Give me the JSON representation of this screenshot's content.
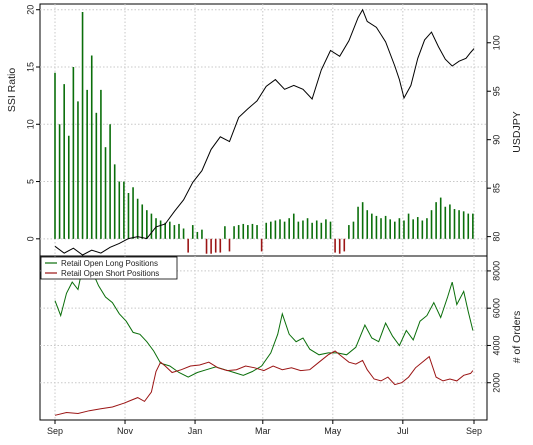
{
  "chart_data": [
    {
      "panel": "top",
      "type": "bar+line",
      "ylabel_left": "SSI Ratio",
      "ylabel_right": "USDJPY",
      "left_ticks": [
        0,
        5,
        10,
        15,
        20
      ],
      "right_ticks": [
        80,
        85,
        90,
        95,
        100
      ],
      "ylim_left": [
        -1.5,
        20.5
      ],
      "ylim_right": [
        78,
        104
      ],
      "x_range": [
        0,
        365
      ],
      "grid": true,
      "colors": {
        "long": "#0a6e0a",
        "short": "#9b1515",
        "price": "#000000"
      },
      "ssi_series": [
        {
          "x": 0,
          "v": 14.5
        },
        {
          "x": 4,
          "v": 10
        },
        {
          "x": 8,
          "v": 13.5
        },
        {
          "x": 12,
          "v": 9
        },
        {
          "x": 16,
          "v": 15
        },
        {
          "x": 20,
          "v": 12
        },
        {
          "x": 24,
          "v": 19.8
        },
        {
          "x": 28,
          "v": 13
        },
        {
          "x": 32,
          "v": 16
        },
        {
          "x": 36,
          "v": 11
        },
        {
          "x": 40,
          "v": 13
        },
        {
          "x": 44,
          "v": 8
        },
        {
          "x": 48,
          "v": 10
        },
        {
          "x": 52,
          "v": 6.5
        },
        {
          "x": 56,
          "v": 5
        },
        {
          "x": 60,
          "v": 5
        },
        {
          "x": 64,
          "v": 4
        },
        {
          "x": 68,
          "v": 4.5
        },
        {
          "x": 72,
          "v": 3.5
        },
        {
          "x": 76,
          "v": 3
        },
        {
          "x": 80,
          "v": 2.5
        },
        {
          "x": 84,
          "v": 2.2
        },
        {
          "x": 88,
          "v": 1.8
        },
        {
          "x": 92,
          "v": 1.6
        },
        {
          "x": 96,
          "v": 1.4
        },
        {
          "x": 100,
          "v": 1.5
        },
        {
          "x": 104,
          "v": 1.2
        },
        {
          "x": 108,
          "v": 1.3
        },
        {
          "x": 112,
          "v": 0.9
        },
        {
          "x": 116,
          "v": -1.2
        },
        {
          "x": 120,
          "v": 1.2
        },
        {
          "x": 124,
          "v": 0.6
        },
        {
          "x": 128,
          "v": 0.8
        },
        {
          "x": 132,
          "v": -1.3
        },
        {
          "x": 136,
          "v": -1.3
        },
        {
          "x": 140,
          "v": -1.2
        },
        {
          "x": 144,
          "v": -1.2
        },
        {
          "x": 148,
          "v": 1.1
        },
        {
          "x": 152,
          "v": -1.1
        },
        {
          "x": 156,
          "v": 1.1
        },
        {
          "x": 160,
          "v": 1.2
        },
        {
          "x": 164,
          "v": 1.3
        },
        {
          "x": 168,
          "v": 1.2
        },
        {
          "x": 172,
          "v": 1.3
        },
        {
          "x": 176,
          "v": 1.2
        },
        {
          "x": 180,
          "v": -1.1
        },
        {
          "x": 184,
          "v": 1.4
        },
        {
          "x": 188,
          "v": 1.5
        },
        {
          "x": 192,
          "v": 1.6
        },
        {
          "x": 196,
          "v": 1.7
        },
        {
          "x": 200,
          "v": 1.5
        },
        {
          "x": 204,
          "v": 1.8
        },
        {
          "x": 208,
          "v": 2.2
        },
        {
          "x": 212,
          "v": 1.5
        },
        {
          "x": 216,
          "v": 1.6
        },
        {
          "x": 220,
          "v": 1.8
        },
        {
          "x": 224,
          "v": 1.4
        },
        {
          "x": 228,
          "v": 1.6
        },
        {
          "x": 232,
          "v": 1.4
        },
        {
          "x": 236,
          "v": 1.7
        },
        {
          "x": 240,
          "v": 1.5
        },
        {
          "x": 244,
          "v": -1.2
        },
        {
          "x": 248,
          "v": -1.3
        },
        {
          "x": 252,
          "v": -1.1
        },
        {
          "x": 256,
          "v": 1.2
        },
        {
          "x": 260,
          "v": 1.5
        },
        {
          "x": 264,
          "v": 2.8
        },
        {
          "x": 268,
          "v": 3.2
        },
        {
          "x": 272,
          "v": 2.5
        },
        {
          "x": 276,
          "v": 2.2
        },
        {
          "x": 280,
          "v": 2
        },
        {
          "x": 284,
          "v": 1.8
        },
        {
          "x": 288,
          "v": 2
        },
        {
          "x": 292,
          "v": 1.7
        },
        {
          "x": 296,
          "v": 1.5
        },
        {
          "x": 300,
          "v": 1.8
        },
        {
          "x": 304,
          "v": 1.6
        },
        {
          "x": 308,
          "v": 2.2
        },
        {
          "x": 312,
          "v": 1.7
        },
        {
          "x": 316,
          "v": 1.9
        },
        {
          "x": 320,
          "v": 1.6
        },
        {
          "x": 324,
          "v": 1.8
        },
        {
          "x": 328,
          "v": 2.5
        },
        {
          "x": 332,
          "v": 3.2
        },
        {
          "x": 336,
          "v": 3.6
        },
        {
          "x": 340,
          "v": 2.8
        },
        {
          "x": 344,
          "v": 3
        },
        {
          "x": 348,
          "v": 2.6
        },
        {
          "x": 352,
          "v": 2.5
        },
        {
          "x": 356,
          "v": 2.4
        },
        {
          "x": 360,
          "v": 2.2
        },
        {
          "x": 364,
          "v": 2.2
        }
      ],
      "price_series": [
        {
          "x": 0,
          "v": 79.0
        },
        {
          "x": 8,
          "v": 78.3
        },
        {
          "x": 16,
          "v": 78.8
        },
        {
          "x": 24,
          "v": 78.1
        },
        {
          "x": 32,
          "v": 78.6
        },
        {
          "x": 40,
          "v": 78.3
        },
        {
          "x": 48,
          "v": 78.9
        },
        {
          "x": 56,
          "v": 79.3
        },
        {
          "x": 64,
          "v": 79.8
        },
        {
          "x": 72,
          "v": 80.0
        },
        {
          "x": 80,
          "v": 79.8
        },
        {
          "x": 88,
          "v": 81.0
        },
        {
          "x": 96,
          "v": 81.3
        },
        {
          "x": 104,
          "v": 82.6
        },
        {
          "x": 112,
          "v": 83.8
        },
        {
          "x": 120,
          "v": 85.6
        },
        {
          "x": 128,
          "v": 86.8
        },
        {
          "x": 136,
          "v": 89.0
        },
        {
          "x": 144,
          "v": 90.3
        },
        {
          "x": 152,
          "v": 89.8
        },
        {
          "x": 160,
          "v": 92.3
        },
        {
          "x": 168,
          "v": 93.2
        },
        {
          "x": 176,
          "v": 94.0
        },
        {
          "x": 184,
          "v": 95.5
        },
        {
          "x": 192,
          "v": 96.2
        },
        {
          "x": 200,
          "v": 95.2
        },
        {
          "x": 208,
          "v": 95.6
        },
        {
          "x": 216,
          "v": 95.2
        },
        {
          "x": 224,
          "v": 94.2
        },
        {
          "x": 232,
          "v": 97.2
        },
        {
          "x": 240,
          "v": 99.2
        },
        {
          "x": 248,
          "v": 98.6
        },
        {
          "x": 256,
          "v": 100.2
        },
        {
          "x": 264,
          "v": 102.6
        },
        {
          "x": 268,
          "v": 103.4
        },
        {
          "x": 272,
          "v": 102.2
        },
        {
          "x": 280,
          "v": 101.6
        },
        {
          "x": 288,
          "v": 100.1
        },
        {
          "x": 296,
          "v": 97.6
        },
        {
          "x": 300,
          "v": 96.2
        },
        {
          "x": 304,
          "v": 94.3
        },
        {
          "x": 310,
          "v": 95.6
        },
        {
          "x": 316,
          "v": 98.4
        },
        {
          "x": 322,
          "v": 100.3
        },
        {
          "x": 328,
          "v": 101.1
        },
        {
          "x": 334,
          "v": 99.6
        },
        {
          "x": 340,
          "v": 98.3
        },
        {
          "x": 346,
          "v": 97.6
        },
        {
          "x": 352,
          "v": 98.1
        },
        {
          "x": 358,
          "v": 98.4
        },
        {
          "x": 362,
          "v": 99.0
        },
        {
          "x": 365,
          "v": 99.4
        }
      ]
    },
    {
      "panel": "bottom",
      "type": "line",
      "ylabel_right": "# of Orders",
      "right_ticks": [
        2000,
        4000,
        6000,
        8000
      ],
      "ylim_right": [
        0,
        8800
      ],
      "x_range": [
        0,
        365
      ],
      "x_ticks": [
        {
          "label": "Sep",
          "x": 0
        },
        {
          "label": "Nov",
          "x": 61
        },
        {
          "label": "Jan",
          "x": 122
        },
        {
          "label": "Mar",
          "x": 181
        },
        {
          "label": "May",
          "x": 242
        },
        {
          "label": "Jul",
          "x": 303
        },
        {
          "label": "Sep",
          "x": 365
        }
      ],
      "grid": true,
      "legend_position": "top-left",
      "series": [
        {
          "name": "Retail Open Long Positions",
          "color": "#0a6e0a",
          "points": [
            {
              "x": 0,
              "v": 6400
            },
            {
              "x": 5,
              "v": 5600
            },
            {
              "x": 10,
              "v": 6800
            },
            {
              "x": 15,
              "v": 7400
            },
            {
              "x": 20,
              "v": 7000
            },
            {
              "x": 24,
              "v": 8200
            },
            {
              "x": 28,
              "v": 7700
            },
            {
              "x": 33,
              "v": 7900
            },
            {
              "x": 38,
              "v": 7200
            },
            {
              "x": 44,
              "v": 6600
            },
            {
              "x": 50,
              "v": 6300
            },
            {
              "x": 56,
              "v": 5700
            },
            {
              "x": 62,
              "v": 5300
            },
            {
              "x": 68,
              "v": 4700
            },
            {
              "x": 74,
              "v": 4600
            },
            {
              "x": 80,
              "v": 4200
            },
            {
              "x": 86,
              "v": 3700
            },
            {
              "x": 92,
              "v": 3050
            },
            {
              "x": 100,
              "v": 2900
            },
            {
              "x": 108,
              "v": 2550
            },
            {
              "x": 116,
              "v": 2300
            },
            {
              "x": 124,
              "v": 2550
            },
            {
              "x": 132,
              "v": 2700
            },
            {
              "x": 140,
              "v": 2850
            },
            {
              "x": 148,
              "v": 2700
            },
            {
              "x": 156,
              "v": 2550
            },
            {
              "x": 164,
              "v": 2400
            },
            {
              "x": 172,
              "v": 2600
            },
            {
              "x": 180,
              "v": 2900
            },
            {
              "x": 188,
              "v": 3600
            },
            {
              "x": 194,
              "v": 4600
            },
            {
              "x": 198,
              "v": 5700
            },
            {
              "x": 204,
              "v": 4600
            },
            {
              "x": 210,
              "v": 4200
            },
            {
              "x": 216,
              "v": 4400
            },
            {
              "x": 222,
              "v": 3800
            },
            {
              "x": 230,
              "v": 3500
            },
            {
              "x": 238,
              "v": 3600
            },
            {
              "x": 246,
              "v": 3600
            },
            {
              "x": 254,
              "v": 3500
            },
            {
              "x": 262,
              "v": 3900
            },
            {
              "x": 270,
              "v": 5100
            },
            {
              "x": 276,
              "v": 4400
            },
            {
              "x": 282,
              "v": 4200
            },
            {
              "x": 288,
              "v": 5200
            },
            {
              "x": 294,
              "v": 4500
            },
            {
              "x": 300,
              "v": 4000
            },
            {
              "x": 306,
              "v": 4800
            },
            {
              "x": 312,
              "v": 4300
            },
            {
              "x": 318,
              "v": 5300
            },
            {
              "x": 324,
              "v": 5600
            },
            {
              "x": 330,
              "v": 6300
            },
            {
              "x": 336,
              "v": 5500
            },
            {
              "x": 342,
              "v": 6600
            },
            {
              "x": 346,
              "v": 7400
            },
            {
              "x": 350,
              "v": 6200
            },
            {
              "x": 356,
              "v": 6900
            },
            {
              "x": 360,
              "v": 5800
            },
            {
              "x": 364,
              "v": 4800
            }
          ]
        },
        {
          "name": "Retail Open Short Positions",
          "color": "#9b1515",
          "points": [
            {
              "x": 0,
              "v": 250
            },
            {
              "x": 10,
              "v": 400
            },
            {
              "x": 20,
              "v": 350
            },
            {
              "x": 30,
              "v": 500
            },
            {
              "x": 40,
              "v": 600
            },
            {
              "x": 50,
              "v": 700
            },
            {
              "x": 60,
              "v": 900
            },
            {
              "x": 66,
              "v": 1050
            },
            {
              "x": 72,
              "v": 1200
            },
            {
              "x": 78,
              "v": 1000
            },
            {
              "x": 84,
              "v": 1500
            },
            {
              "x": 88,
              "v": 2600
            },
            {
              "x": 92,
              "v": 3100
            },
            {
              "x": 96,
              "v": 2900
            },
            {
              "x": 102,
              "v": 2550
            },
            {
              "x": 110,
              "v": 2700
            },
            {
              "x": 118,
              "v": 2900
            },
            {
              "x": 126,
              "v": 2950
            },
            {
              "x": 134,
              "v": 3100
            },
            {
              "x": 142,
              "v": 2800
            },
            {
              "x": 150,
              "v": 2650
            },
            {
              "x": 158,
              "v": 2700
            },
            {
              "x": 166,
              "v": 2900
            },
            {
              "x": 174,
              "v": 2800
            },
            {
              "x": 182,
              "v": 2650
            },
            {
              "x": 190,
              "v": 2900
            },
            {
              "x": 198,
              "v": 2700
            },
            {
              "x": 206,
              "v": 2800
            },
            {
              "x": 214,
              "v": 2650
            },
            {
              "x": 222,
              "v": 2700
            },
            {
              "x": 230,
              "v": 3100
            },
            {
              "x": 238,
              "v": 3500
            },
            {
              "x": 244,
              "v": 3700
            },
            {
              "x": 250,
              "v": 3400
            },
            {
              "x": 256,
              "v": 3100
            },
            {
              "x": 262,
              "v": 3000
            },
            {
              "x": 268,
              "v": 3200
            },
            {
              "x": 272,
              "v": 2700
            },
            {
              "x": 278,
              "v": 2200
            },
            {
              "x": 284,
              "v": 2100
            },
            {
              "x": 290,
              "v": 2300
            },
            {
              "x": 296,
              "v": 1900
            },
            {
              "x": 302,
              "v": 2000
            },
            {
              "x": 308,
              "v": 2300
            },
            {
              "x": 314,
              "v": 2800
            },
            {
              "x": 320,
              "v": 3100
            },
            {
              "x": 326,
              "v": 3400
            },
            {
              "x": 332,
              "v": 2300
            },
            {
              "x": 338,
              "v": 2100
            },
            {
              "x": 344,
              "v": 2200
            },
            {
              "x": 350,
              "v": 2100
            },
            {
              "x": 356,
              "v": 2400
            },
            {
              "x": 362,
              "v": 2500
            },
            {
              "x": 364,
              "v": 2650
            }
          ]
        }
      ]
    }
  ]
}
